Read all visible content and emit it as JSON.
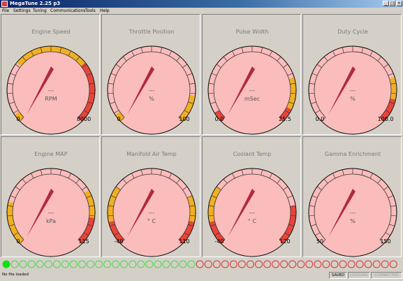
{
  "window": {
    "title": "MegaTune 2.25 p3",
    "controls": [
      "_",
      "□",
      "×"
    ]
  },
  "menu": [
    "File",
    "Settings",
    "Tuning",
    "Communications",
    "Tools",
    "Help"
  ],
  "colors": {
    "dial_face": "#fbbcbc",
    "needle": "#b02a3a",
    "warning": "#f0b020",
    "danger": "#e8443a",
    "led_on": "#10e010",
    "led_green": "#4cd84c",
    "led_red": "#dd3333"
  },
  "gauges": [
    {
      "title": "Engine Speed",
      "units": "RPM",
      "value_text": "---",
      "min_label": "0",
      "max_label": "8000",
      "value_fraction": 0,
      "zones": [
        {
          "from": 0.0,
          "to": 0.04,
          "level": "warning"
        },
        {
          "from": 0.31,
          "to": 0.69,
          "level": "warning"
        },
        {
          "from": 0.69,
          "to": 1.0,
          "level": "danger"
        }
      ]
    },
    {
      "title": "Throttle Position",
      "units": "%",
      "value_text": "---",
      "min_label": "0",
      "max_label": "100",
      "value_fraction": 0,
      "zones": [
        {
          "from": 0.0,
          "to": 0.04,
          "level": "warning"
        },
        {
          "from": 0.86,
          "to": 1.0,
          "level": "warning"
        }
      ]
    },
    {
      "title": "Pulse Width",
      "units": "mSec",
      "value_text": "---",
      "min_label": "0.0",
      "max_label": "25.5",
      "value_fraction": 0,
      "zones": [
        {
          "from": 0.0,
          "to": 0.05,
          "level": "danger"
        },
        {
          "from": 0.77,
          "to": 0.93,
          "level": "warning"
        },
        {
          "from": 0.93,
          "to": 1.0,
          "level": "danger"
        }
      ]
    },
    {
      "title": "Duty Cycle",
      "units": "%",
      "value_text": "---",
      "min_label": "0.0",
      "max_label": "100.0",
      "value_fraction": 0,
      "zones": [
        {
          "from": 0.77,
          "to": 0.88,
          "level": "warning"
        },
        {
          "from": 0.88,
          "to": 1.0,
          "level": "danger"
        }
      ]
    },
    {
      "title": "Engine MAP",
      "units": "kPa",
      "value_text": "---",
      "min_label": "0",
      "max_label": "115",
      "value_fraction": 0,
      "zones": [
        {
          "from": 0.0,
          "to": 0.22,
          "level": "warning"
        },
        {
          "from": 0.72,
          "to": 0.86,
          "level": "warning"
        },
        {
          "from": 0.86,
          "to": 1.0,
          "level": "danger"
        }
      ]
    },
    {
      "title": "Manifold Air Temp",
      "units": "° C",
      "value_text": "---",
      "min_label": "-40",
      "max_label": "110",
      "value_fraction": 0,
      "zones": [
        {
          "from": 0.0,
          "to": 0.12,
          "level": "danger"
        },
        {
          "from": 0.12,
          "to": 0.3,
          "level": "warning"
        },
        {
          "from": 0.75,
          "to": 0.88,
          "level": "warning"
        },
        {
          "from": 0.88,
          "to": 1.0,
          "level": "danger"
        }
      ]
    },
    {
      "title": "Coolant Temp",
      "units": "° C",
      "value_text": "---",
      "min_label": "-40",
      "max_label": "120",
      "value_fraction": 0,
      "zones": [
        {
          "from": 0.0,
          "to": 0.12,
          "level": "danger"
        },
        {
          "from": 0.12,
          "to": 0.3,
          "level": "warning"
        },
        {
          "from": 0.8,
          "to": 1.0,
          "level": "danger"
        }
      ]
    },
    {
      "title": "Gamma Enrichment",
      "units": "%",
      "value_text": "---",
      "min_label": "50",
      "max_label": "150",
      "value_fraction": 0,
      "zones": []
    }
  ],
  "leds": {
    "green_on": 1,
    "green_off": 22,
    "red_off": 24
  },
  "statusbar": {
    "message": "No file loaded",
    "indicators": [
      {
        "label": "SAVED",
        "active": true
      },
      {
        "label": "LOGGING",
        "active": false
      },
      {
        "label": "CONNECTED",
        "active": false
      }
    ]
  }
}
